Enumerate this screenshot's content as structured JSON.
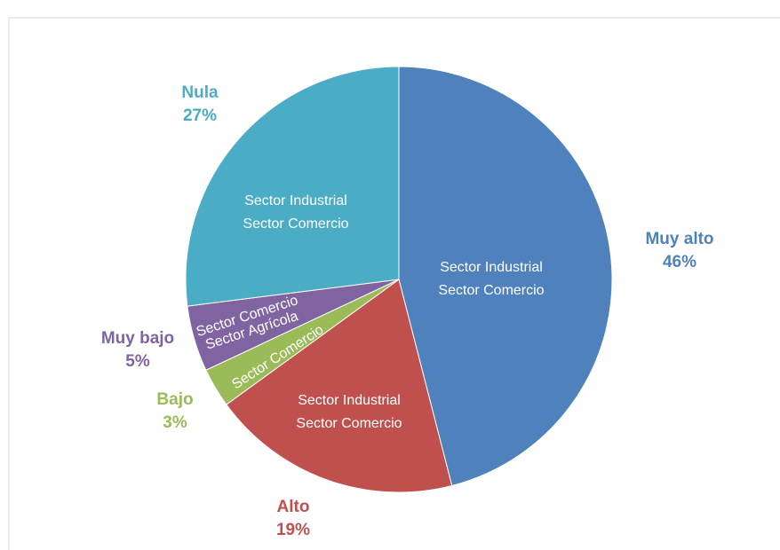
{
  "chart_data": {
    "type": "pie",
    "categories": [
      "Muy alto",
      "Alto",
      "Bajo",
      "Muy bajo",
      "Nula"
    ],
    "values": [
      46,
      19,
      3,
      5,
      27
    ],
    "value_labels": [
      "46%",
      "19%",
      "3%",
      "5%",
      "27%"
    ],
    "colors": [
      "#4f81bd",
      "#c0504d",
      "#9bbb59",
      "#8064a2",
      "#4bacc6"
    ],
    "inner_labels": [
      [
        "Sector Industrial",
        "Sector Comercio"
      ],
      [
        "Sector Industrial",
        "Sector Comercio"
      ],
      [
        "Sector Comercio"
      ],
      [
        "Sector Comercio",
        "Sector Agrícola"
      ],
      [
        "Sector Industrial",
        "Sector Comercio"
      ]
    ]
  }
}
